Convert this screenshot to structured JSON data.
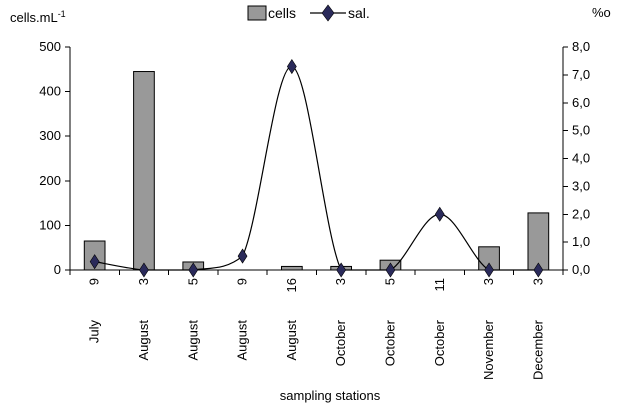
{
  "chart_data": {
    "type": "bar",
    "title": "",
    "xlabel": "sampling stations",
    "ylabel": "cells.mL-1",
    "ylabel_main": "cells.mL",
    "ylabel_sup": "-1",
    "y2label": "%o",
    "categories": [
      {
        "day": "9",
        "month": "July"
      },
      {
        "day": "3",
        "month": "August"
      },
      {
        "day": "5",
        "month": "August"
      },
      {
        "day": "9",
        "month": "August"
      },
      {
        "day": "16",
        "month": "August"
      },
      {
        "day": "3",
        "month": "October"
      },
      {
        "day": "5",
        "month": "October"
      },
      {
        "day": "11",
        "month": "October"
      },
      {
        "day": "3",
        "month": "November"
      },
      {
        "day": "3",
        "month": "December"
      }
    ],
    "series": [
      {
        "name": "cells",
        "axis": "left",
        "type": "bar",
        "color": "#999999",
        "values": [
          65,
          445,
          18,
          0,
          8,
          8,
          22,
          0,
          52,
          128
        ]
      },
      {
        "name": "sal.",
        "axis": "right",
        "type": "line",
        "color": "#000000",
        "marker_color": "#2a2a5a",
        "values": [
          0.3,
          0.0,
          0.0,
          0.5,
          7.3,
          0.0,
          0.0,
          2.0,
          0.0,
          0.0
        ]
      }
    ],
    "ylim": [
      0,
      500
    ],
    "y_ticks": [
      "0",
      "100",
      "200",
      "300",
      "400",
      "500"
    ],
    "y2lim": [
      0,
      8
    ],
    "y2_ticks": [
      "0,0",
      "1,0",
      "2,0",
      "3,0",
      "4,0",
      "5,0",
      "6,0",
      "7,0",
      "8,0"
    ],
    "legend": {
      "placement": "top-center",
      "labels": [
        "cells",
        "sal."
      ]
    },
    "grid": false
  }
}
